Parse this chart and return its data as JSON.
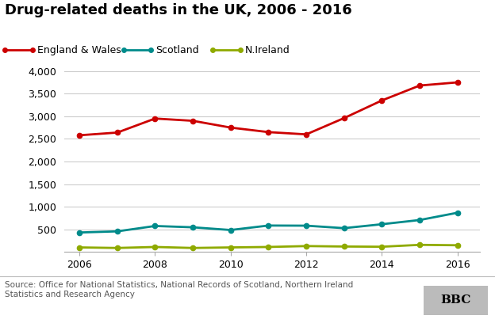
{
  "title": "Drug-related deaths in the UK, 2006 - 2016",
  "years": [
    2006,
    2007,
    2008,
    2009,
    2010,
    2011,
    2012,
    2013,
    2014,
    2015,
    2016
  ],
  "england_wales": [
    2580,
    2640,
    2950,
    2900,
    2750,
    2650,
    2600,
    2960,
    3350,
    3680,
    3750
  ],
  "scotland": [
    430,
    455,
    574,
    545,
    485,
    584,
    581,
    526,
    613,
    706,
    867
  ],
  "nireland": [
    100,
    88,
    110,
    88,
    100,
    110,
    130,
    120,
    115,
    157,
    148
  ],
  "colors": {
    "england_wales": "#cc0000",
    "scotland": "#008b8b",
    "nireland": "#8faa00"
  },
  "legend_labels": [
    "England & Wales",
    "Scotland",
    "N.Ireland"
  ],
  "ylim": [
    0,
    4000
  ],
  "yticks": [
    0,
    500,
    1000,
    1500,
    2000,
    2500,
    3000,
    3500,
    4000
  ],
  "ytick_labels": [
    "",
    "500",
    "1,000",
    "1,500",
    "2,000",
    "2,500",
    "3,000",
    "3,500",
    "4,000"
  ],
  "xticks": [
    2006,
    2008,
    2010,
    2012,
    2014,
    2016
  ],
  "source_text": "Source: Office for National Statistics, National Records of Scotland, Northern Ireland\nStatistics and Research Agency",
  "bbc_text": "BBC",
  "background_color": "#ffffff",
  "grid_color": "#cccccc",
  "title_fontsize": 13,
  "axis_fontsize": 9,
  "legend_fontsize": 9,
  "source_fontsize": 7.5,
  "marker": "o",
  "marker_size": 4.5,
  "line_width": 2.0
}
